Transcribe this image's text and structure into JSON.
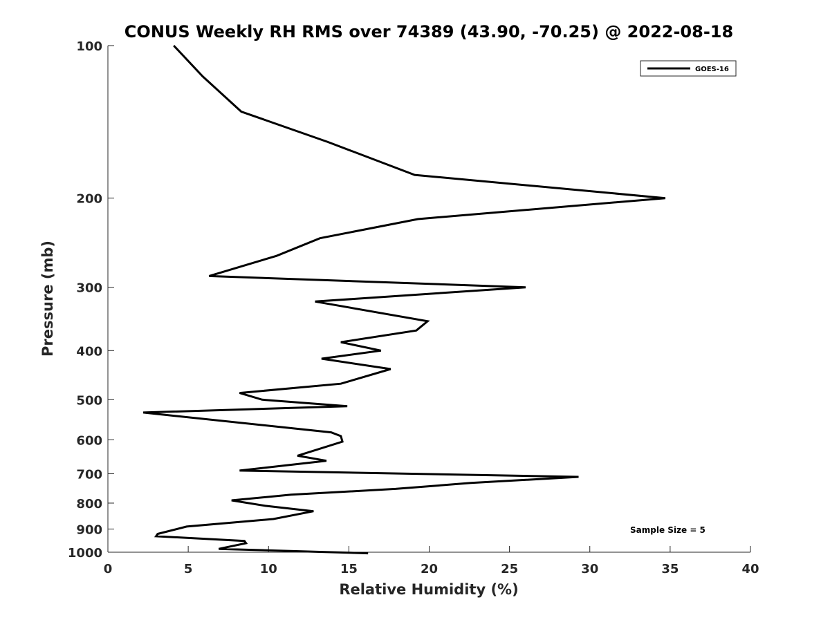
{
  "chart_data": {
    "type": "line",
    "title": "CONUS Weekly RH RMS over 74389 (43.90, -70.25) @ 2022-08-18",
    "xlabel": "Relative Humidity (%)",
    "ylabel": "Pressure (mb)",
    "xlim": [
      0,
      40
    ],
    "ylim": [
      100,
      1000
    ],
    "yscale": "log",
    "yreversed": true,
    "xticks": [
      0,
      5,
      10,
      15,
      20,
      25,
      30,
      35,
      40
    ],
    "yticks": [
      100,
      200,
      300,
      400,
      500,
      600,
      700,
      800,
      900,
      1000
    ],
    "grid": false,
    "legend_position": "top-right",
    "annotation": "Sample Size = 5",
    "series": [
      {
        "name": "GOES-16",
        "color": "#000000",
        "x": [
          4.1,
          5.9,
          8.3,
          13.7,
          19.1,
          34.7,
          19.3,
          13.2,
          10.5,
          6.3,
          26.0,
          12.9,
          19.9,
          19.2,
          14.5,
          17.0,
          13.3,
          17.6,
          14.5,
          8.2,
          9.6,
          14.9,
          2.2,
          13.9,
          14.5,
          14.6,
          11.8,
          13.6,
          8.2,
          29.3,
          22.6,
          17.9,
          11.4,
          7.7,
          9.8,
          12.8,
          10.3,
          4.9,
          3.1,
          3.0,
          8.5,
          8.6,
          6.9,
          16.2
        ],
        "y": [
          100,
          115,
          135,
          155,
          180,
          200,
          220,
          240,
          260,
          285,
          300,
          320,
          350,
          365,
          385,
          400,
          415,
          435,
          465,
          485,
          500,
          515,
          530,
          580,
          590,
          605,
          645,
          660,
          690,
          710,
          730,
          750,
          770,
          790,
          810,
          830,
          860,
          890,
          920,
          930,
          950,
          960,
          985,
          1005
        ]
      }
    ]
  }
}
